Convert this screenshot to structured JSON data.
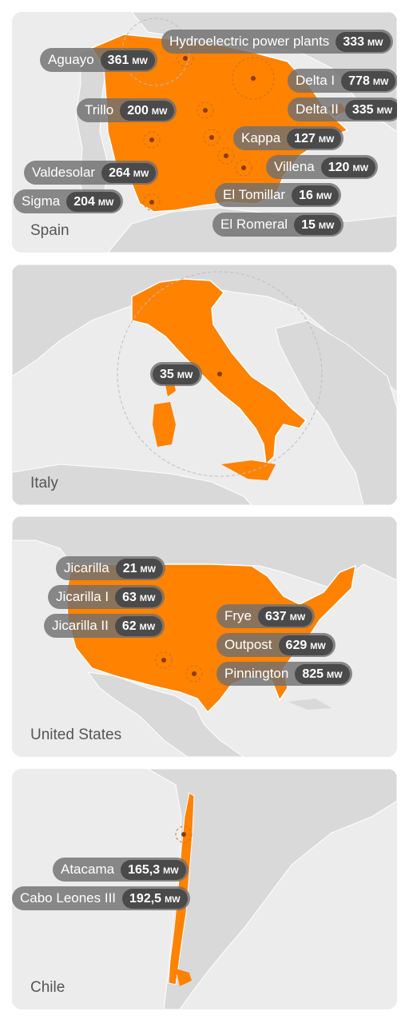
{
  "colors": {
    "land": "#d9d9d9",
    "sea": "#ececec",
    "highlight": "#ff8200",
    "pill": "#707070",
    "value": "#4a4a4a"
  },
  "unit": "MW",
  "maps": [
    {
      "country": "Spain",
      "plants": [
        {
          "name": "Hydroelectric power plants",
          "value": "333"
        },
        {
          "name": "Aguayo",
          "value": "361"
        },
        {
          "name": "Delta I",
          "value": "778"
        },
        {
          "name": "Trillo",
          "value": "200"
        },
        {
          "name": "Delta II",
          "value": "335"
        },
        {
          "name": "Kappa",
          "value": "127"
        },
        {
          "name": "Villena",
          "value": "120"
        },
        {
          "name": "Valdesolar",
          "value": "264"
        },
        {
          "name": "El Tomillar",
          "value": "16"
        },
        {
          "name": "Sigma",
          "value": "204"
        },
        {
          "name": "El Romeral",
          "value": "15"
        }
      ]
    },
    {
      "country": "Italy",
      "plants": [
        {
          "name": "",
          "value": "35"
        }
      ]
    },
    {
      "country": "United States",
      "plants": [
        {
          "name": "Jicarilla",
          "value": "21"
        },
        {
          "name": "Jicarilla I",
          "value": "63"
        },
        {
          "name": "Jicarilla II",
          "value": "62"
        },
        {
          "name": "Frye",
          "value": "637"
        },
        {
          "name": "Outpost",
          "value": "629"
        },
        {
          "name": "Pinnington",
          "value": "825"
        }
      ]
    },
    {
      "country": "Chile",
      "plants": [
        {
          "name": "Atacama",
          "value": "165,3"
        },
        {
          "name": "Cabo Leones III",
          "value": "192,5"
        }
      ]
    }
  ]
}
